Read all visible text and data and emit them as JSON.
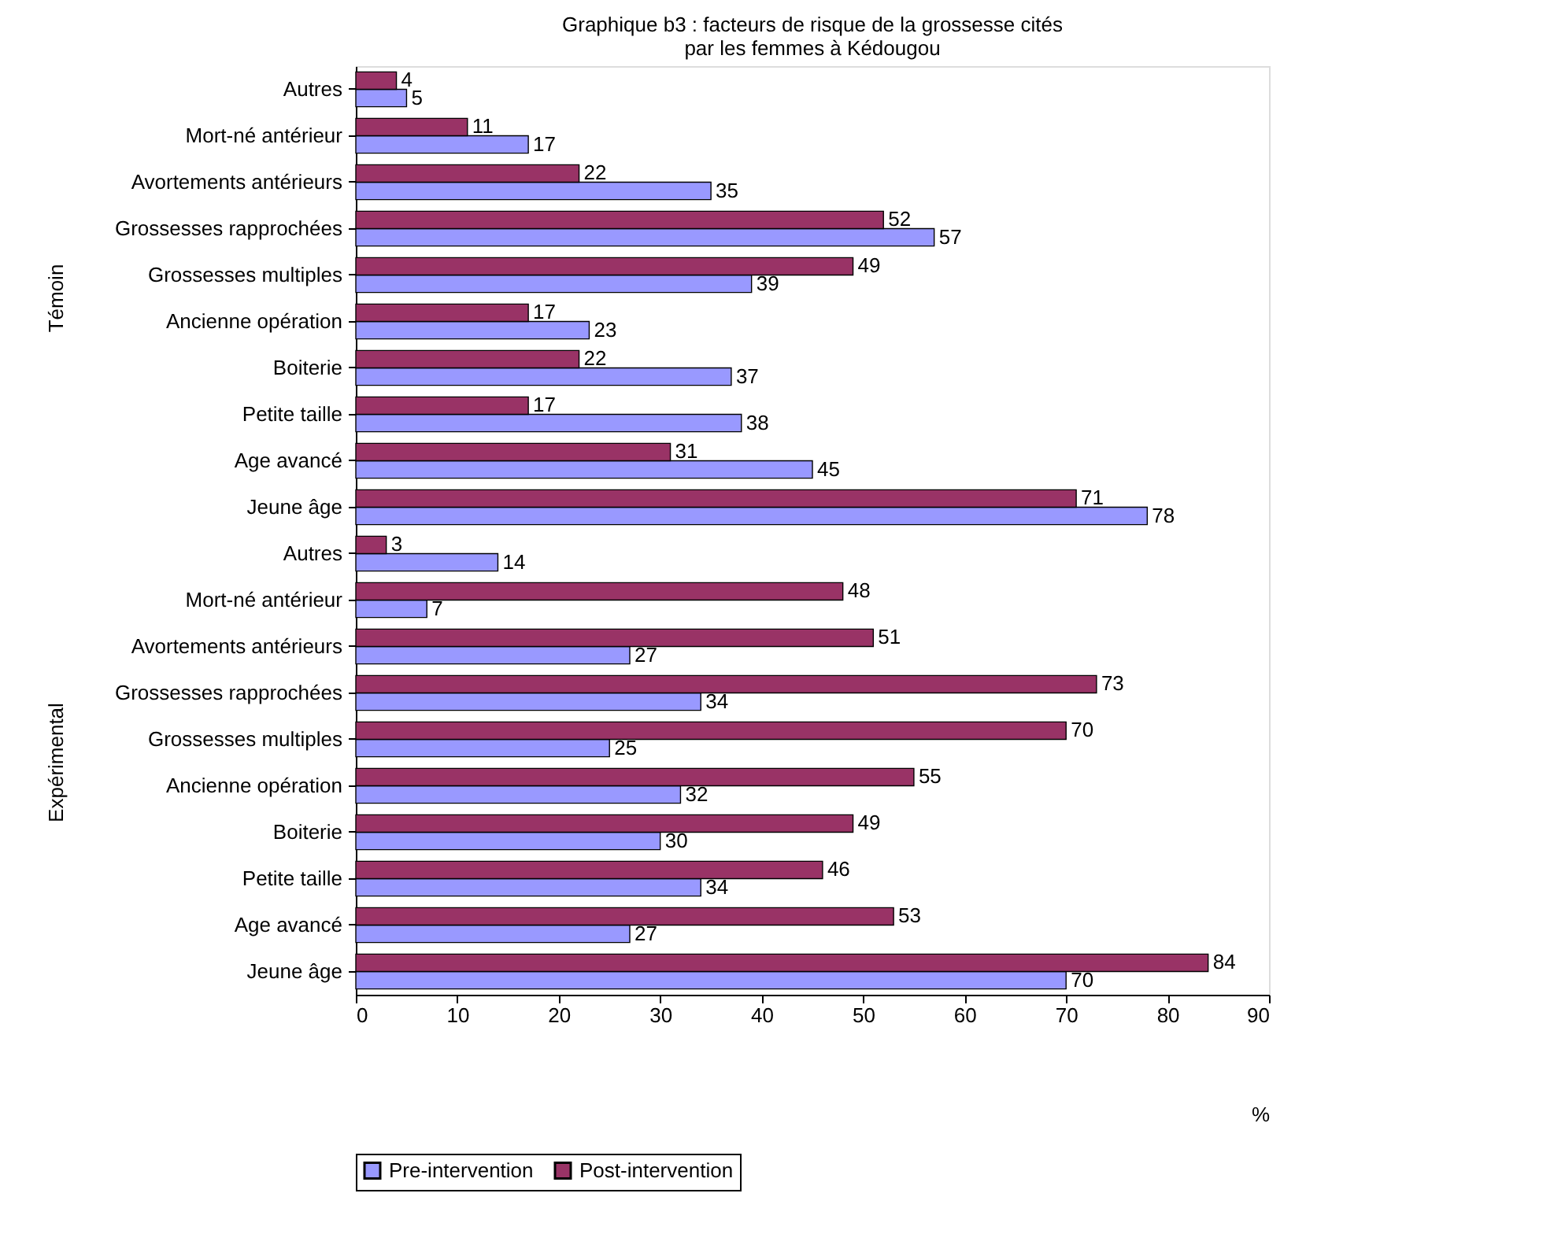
{
  "chart_data": {
    "type": "bar",
    "orientation": "horizontal",
    "title": "Graphique b3 : facteurs de risque de  la grossesse cités\npar les femmes à Kédougou",
    "xlabel": "%",
    "categories": [
      "Autres",
      "Mort-né antérieur",
      "Avortements antérieurs",
      "Grossesses rapprochées",
      "Grossesses multiples",
      "Ancienne opération",
      "Boiterie",
      "Petite taille",
      "Age avancé",
      "Jeune âge",
      "Autres",
      "Mort-né antérieur",
      "Avortements antérieurs",
      "Grossesses rapprochées",
      "Grossesses multiples",
      "Ancienne opération",
      "Boiterie",
      "Petite taille",
      "Age avancé",
      "Jeune âge"
    ],
    "series": [
      {
        "name": "Pre-intervention",
        "color": "#9999ff",
        "values": [
          5,
          17,
          35,
          57,
          39,
          23,
          37,
          38,
          45,
          78,
          14,
          7,
          27,
          34,
          25,
          32,
          30,
          34,
          27,
          70
        ]
      },
      {
        "name": "Post-intervention",
        "color": "#993366",
        "values": [
          4,
          11,
          22,
          52,
          49,
          17,
          22,
          17,
          31,
          71,
          3,
          48,
          51,
          73,
          70,
          55,
          49,
          46,
          53,
          84
        ]
      }
    ],
    "annotations": [
      "Témoin",
      "Expérimental"
    ],
    "xlim": [
      0,
      90
    ],
    "xticks": [
      0,
      10,
      20,
      30,
      40,
      50,
      60,
      70,
      80,
      90
    ],
    "grid": false,
    "legend": "bottom",
    "data_labels": true
  }
}
